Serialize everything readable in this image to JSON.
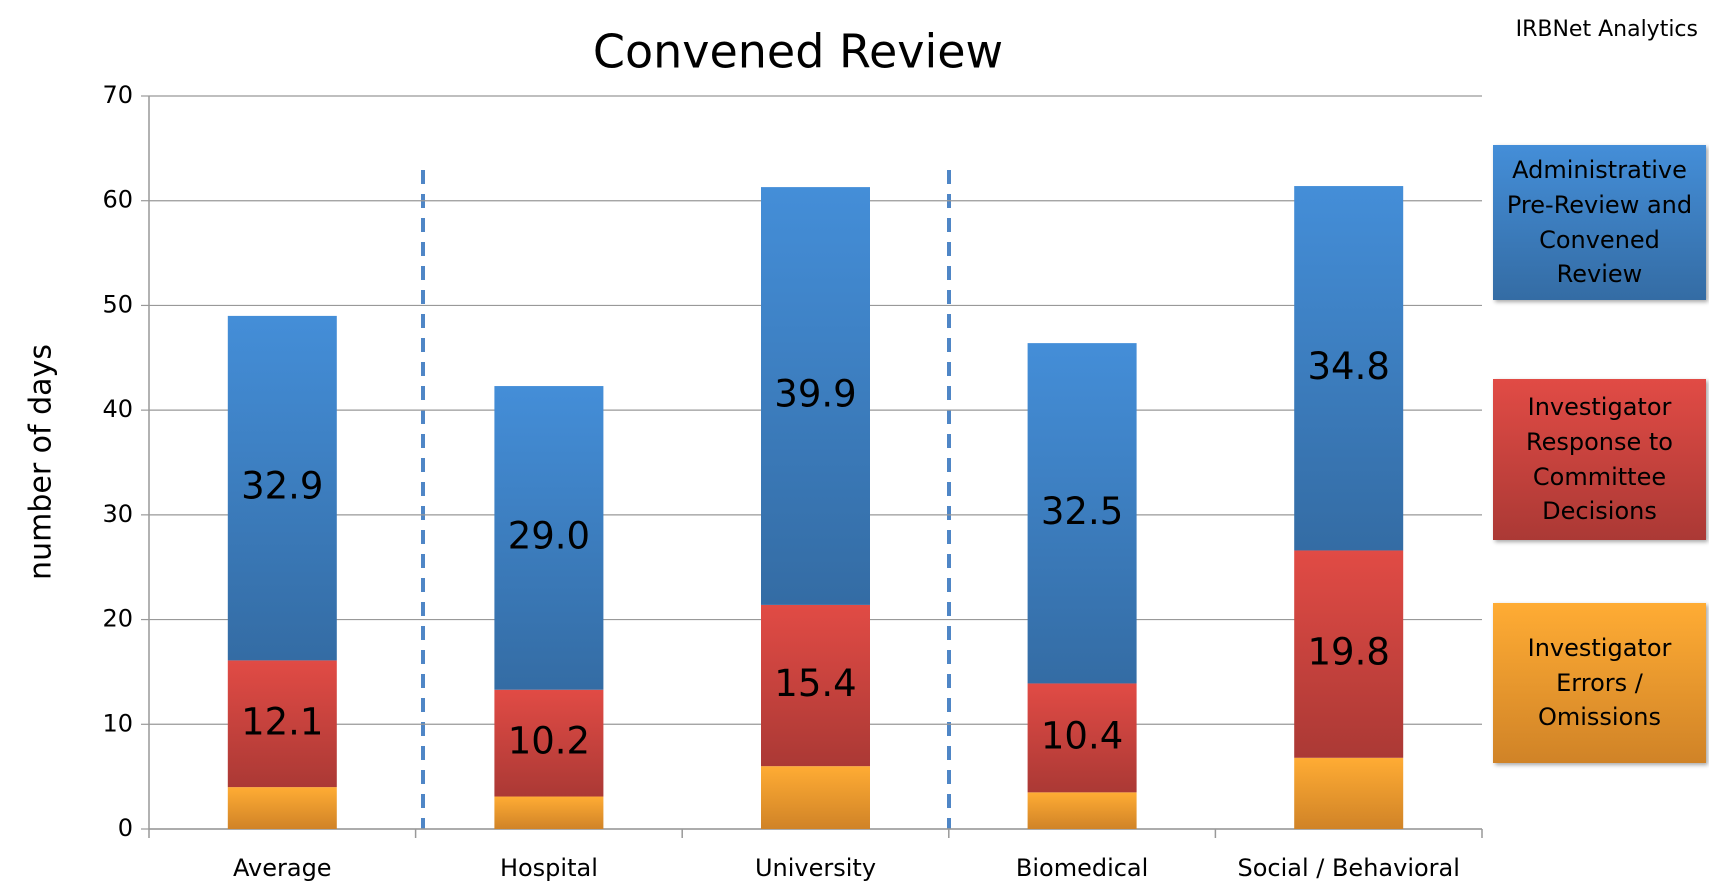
{
  "chart_data": {
    "type": "stacked_bar",
    "title": "Convened Review",
    "annotation": "IRBNet Analytics",
    "y_label": "number of days",
    "categories": [
      "Average",
      "Hospital",
      "University",
      "Biomedical",
      "Social / Behavioral"
    ],
    "series": [
      {
        "name": "Investigator Errors / Omissions",
        "color": "#f59a2e",
        "values": [
          4.0,
          3.1,
          6.0,
          3.5,
          6.8
        ]
      },
      {
        "name": "Investigator Response to Committee Decisions",
        "color": "#c9433e",
        "values": [
          12.1,
          10.2,
          15.4,
          10.4,
          19.8
        ],
        "value_labels": [
          "12.1",
          "10.2",
          "15.4",
          "10.4",
          "19.8"
        ]
      },
      {
        "name": "Administrative Pre-Review and Convened Review",
        "color": "#3d7fc1",
        "values": [
          32.9,
          29.0,
          39.9,
          32.5,
          34.8
        ],
        "value_labels": [
          "32.9",
          "29.0",
          "39.9",
          "32.5",
          "34.8"
        ]
      }
    ],
    "ylim": [
      0,
      70
    ],
    "yticks": [
      0,
      10,
      20,
      30,
      40,
      50,
      60,
      70
    ],
    "grid": true,
    "legend": "right"
  }
}
